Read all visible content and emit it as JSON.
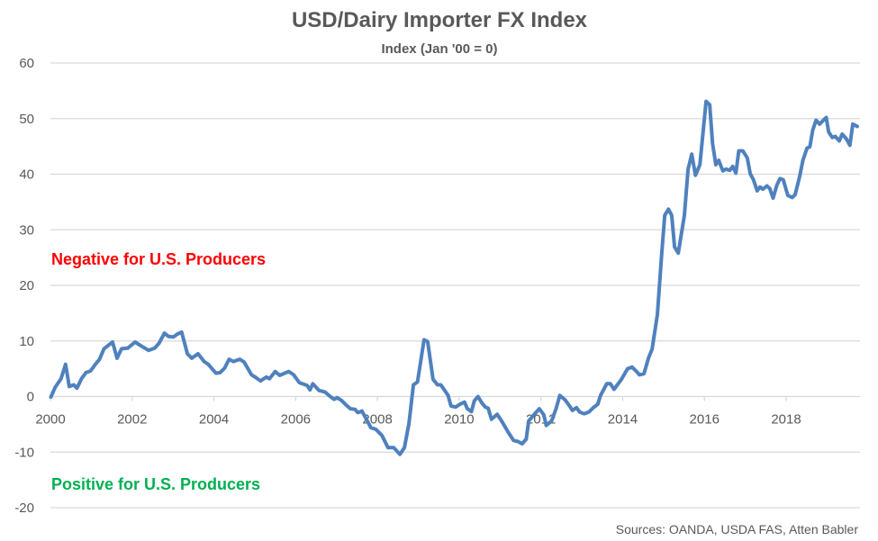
{
  "chart_data": {
    "type": "line",
    "title": "USD/Dairy Importer FX Index",
    "subtitle": "Index (Jan '00 = 0)",
    "xlabel": "",
    "ylabel": "",
    "xlim": [
      2000,
      2019.8
    ],
    "ylim": [
      -20,
      60
    ],
    "yticks": [
      -20,
      -10,
      0,
      10,
      20,
      30,
      40,
      50,
      60
    ],
    "xticks": [
      2000,
      2002,
      2004,
      2006,
      2008,
      2010,
      2012,
      2014,
      2016,
      2018
    ],
    "grid": true,
    "annotations": {
      "negative": {
        "text": "Negative for U.S. Producers",
        "color": "#ff0000"
      },
      "positive": {
        "text": "Positive for U.S. Producers",
        "color": "#00b050"
      }
    },
    "source": "Sources: OANDA, USDA FAS, Atten Babler",
    "series": [
      {
        "name": "USD/Dairy Importer FX Index",
        "color": "#4f81bd",
        "points": [
          [
            2000.01,
            -0.1
          ],
          [
            2000.12,
            1.7
          ],
          [
            2000.26,
            3.2
          ],
          [
            2000.37,
            5.8
          ],
          [
            2000.46,
            1.8
          ],
          [
            2000.57,
            2.1
          ],
          [
            2000.65,
            1.5
          ],
          [
            2000.76,
            3.2
          ],
          [
            2000.87,
            4.3
          ],
          [
            2000.98,
            4.6
          ],
          [
            2001.09,
            5.7
          ],
          [
            2001.2,
            6.7
          ],
          [
            2001.31,
            8.6
          ],
          [
            2001.52,
            9.8
          ],
          [
            2001.63,
            6.9
          ],
          [
            2001.74,
            8.6
          ],
          [
            2001.89,
            8.7
          ],
          [
            2002.07,
            9.8
          ],
          [
            2002.22,
            9.1
          ],
          [
            2002.4,
            8.3
          ],
          [
            2002.55,
            8.7
          ],
          [
            2002.66,
            9.6
          ],
          [
            2002.79,
            11.4
          ],
          [
            2002.89,
            10.8
          ],
          [
            2003.01,
            10.7
          ],
          [
            2003.1,
            11.2
          ],
          [
            2003.21,
            11.6
          ],
          [
            2003.35,
            7.7
          ],
          [
            2003.46,
            6.9
          ],
          [
            2003.61,
            7.7
          ],
          [
            2003.76,
            6.3
          ],
          [
            2003.86,
            5.8
          ],
          [
            2004.05,
            4.2
          ],
          [
            2004.15,
            4.3
          ],
          [
            2004.26,
            5.1
          ],
          [
            2004.37,
            6.7
          ],
          [
            2004.48,
            6.3
          ],
          [
            2004.63,
            6.7
          ],
          [
            2004.74,
            6.2
          ],
          [
            2004.92,
            3.9
          ],
          [
            2005.03,
            3.4
          ],
          [
            2005.14,
            2.8
          ],
          [
            2005.28,
            3.5
          ],
          [
            2005.36,
            3.2
          ],
          [
            2005.5,
            4.5
          ],
          [
            2005.61,
            3.8
          ],
          [
            2005.83,
            4.5
          ],
          [
            2005.95,
            3.9
          ],
          [
            2006.09,
            2.5
          ],
          [
            2006.28,
            2.0
          ],
          [
            2006.35,
            1.2
          ],
          [
            2006.42,
            2.3
          ],
          [
            2006.57,
            1.1
          ],
          [
            2006.72,
            0.8
          ],
          [
            2006.83,
            0.1
          ],
          [
            2006.94,
            -0.5
          ],
          [
            2007.01,
            -0.2
          ],
          [
            2007.12,
            -0.7
          ],
          [
            2007.23,
            -1.5
          ],
          [
            2007.34,
            -2.2
          ],
          [
            2007.45,
            -2.3
          ],
          [
            2007.52,
            -2.9
          ],
          [
            2007.62,
            -2.6
          ],
          [
            2007.84,
            -5.6
          ],
          [
            2007.96,
            -5.9
          ],
          [
            2008.11,
            -7.0
          ],
          [
            2008.26,
            -9.2
          ],
          [
            2008.4,
            -9.2
          ],
          [
            2008.55,
            -10.4
          ],
          [
            2008.66,
            -9.2
          ],
          [
            2008.77,
            -4.9
          ],
          [
            2008.88,
            2.1
          ],
          [
            2008.98,
            2.6
          ],
          [
            2009.14,
            10.2
          ],
          [
            2009.23,
            9.9
          ],
          [
            2009.36,
            3.1
          ],
          [
            2009.47,
            2.1
          ],
          [
            2009.55,
            2.1
          ],
          [
            2009.73,
            0.2
          ],
          [
            2009.8,
            -1.7
          ],
          [
            2009.91,
            -1.9
          ],
          [
            2010.02,
            -1.4
          ],
          [
            2010.13,
            -1.0
          ],
          [
            2010.2,
            -2.2
          ],
          [
            2010.3,
            -2.7
          ],
          [
            2010.37,
            -0.8
          ],
          [
            2010.46,
            0.0
          ],
          [
            2010.55,
            -1.1
          ],
          [
            2010.64,
            -1.9
          ],
          [
            2010.71,
            -2.1
          ],
          [
            2010.79,
            -4.1
          ],
          [
            2010.93,
            -3.2
          ],
          [
            2011.04,
            -4.4
          ],
          [
            2011.19,
            -6.3
          ],
          [
            2011.33,
            -7.9
          ],
          [
            2011.44,
            -8.1
          ],
          [
            2011.54,
            -8.5
          ],
          [
            2011.64,
            -7.7
          ],
          [
            2011.7,
            -4.4
          ],
          [
            2011.85,
            -3.1
          ],
          [
            2011.96,
            -2.2
          ],
          [
            2012.07,
            -3.3
          ],
          [
            2012.13,
            -5.2
          ],
          [
            2012.26,
            -4.4
          ],
          [
            2012.37,
            -2.2
          ],
          [
            2012.46,
            0.2
          ],
          [
            2012.59,
            -0.6
          ],
          [
            2012.7,
            -1.7
          ],
          [
            2012.77,
            -2.5
          ],
          [
            2012.87,
            -2.0
          ],
          [
            2012.95,
            -2.8
          ],
          [
            2013.06,
            -3.1
          ],
          [
            2013.17,
            -2.8
          ],
          [
            2013.28,
            -2.0
          ],
          [
            2013.39,
            -1.4
          ],
          [
            2013.46,
            0.2
          ],
          [
            2013.61,
            2.3
          ],
          [
            2013.7,
            2.3
          ],
          [
            2013.79,
            1.3
          ],
          [
            2013.97,
            3.1
          ],
          [
            2014.12,
            5.0
          ],
          [
            2014.23,
            5.3
          ],
          [
            2014.34,
            4.5
          ],
          [
            2014.41,
            3.9
          ],
          [
            2014.52,
            4.1
          ],
          [
            2014.63,
            6.9
          ],
          [
            2014.72,
            8.5
          ],
          [
            2014.85,
            14.7
          ],
          [
            2014.96,
            26.1
          ],
          [
            2015.03,
            32.6
          ],
          [
            2015.12,
            33.7
          ],
          [
            2015.2,
            32.6
          ],
          [
            2015.27,
            26.9
          ],
          [
            2015.36,
            25.8
          ],
          [
            2015.51,
            32.6
          ],
          [
            2015.6,
            40.9
          ],
          [
            2015.69,
            43.6
          ],
          [
            2015.78,
            39.8
          ],
          [
            2015.89,
            41.7
          ],
          [
            2016.04,
            53.1
          ],
          [
            2016.13,
            52.5
          ],
          [
            2016.2,
            45.5
          ],
          [
            2016.28,
            41.7
          ],
          [
            2016.35,
            42.5
          ],
          [
            2016.45,
            40.6
          ],
          [
            2016.53,
            40.9
          ],
          [
            2016.62,
            40.7
          ],
          [
            2016.69,
            41.4
          ],
          [
            2016.77,
            40.2
          ],
          [
            2016.84,
            44.2
          ],
          [
            2016.94,
            44.2
          ],
          [
            2017.05,
            42.9
          ],
          [
            2017.12,
            40.1
          ],
          [
            2017.2,
            39.0
          ],
          [
            2017.29,
            37.0
          ],
          [
            2017.36,
            37.7
          ],
          [
            2017.43,
            37.3
          ],
          [
            2017.53,
            37.9
          ],
          [
            2017.6,
            37.4
          ],
          [
            2017.68,
            35.7
          ],
          [
            2017.77,
            38.0
          ],
          [
            2017.85,
            39.2
          ],
          [
            2017.93,
            39.0
          ],
          [
            2018.04,
            36.2
          ],
          [
            2018.15,
            35.8
          ],
          [
            2018.22,
            36.3
          ],
          [
            2018.33,
            39.6
          ],
          [
            2018.41,
            42.5
          ],
          [
            2018.51,
            44.7
          ],
          [
            2018.58,
            44.9
          ],
          [
            2018.65,
            47.9
          ],
          [
            2018.73,
            49.7
          ],
          [
            2018.82,
            49.0
          ],
          [
            2018.91,
            49.7
          ],
          [
            2018.98,
            50.2
          ],
          [
            2019.04,
            47.6
          ],
          [
            2019.13,
            46.6
          ],
          [
            2019.2,
            46.8
          ],
          [
            2019.3,
            46.0
          ],
          [
            2019.37,
            47.2
          ],
          [
            2019.47,
            46.4
          ],
          [
            2019.56,
            45.2
          ],
          [
            2019.63,
            49.0
          ],
          [
            2019.74,
            48.6
          ]
        ]
      }
    ]
  }
}
